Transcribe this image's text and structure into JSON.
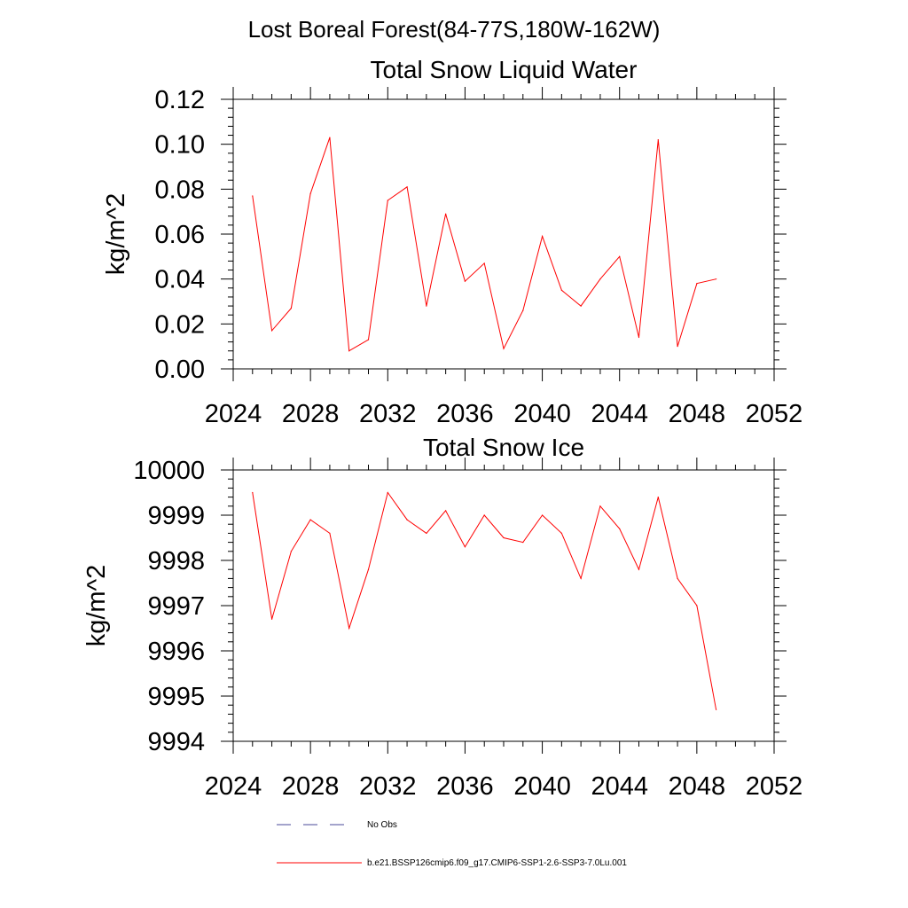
{
  "figure": {
    "title": "Lost Boreal Forest(84-77S,180W-162W)"
  },
  "chart_data": [
    {
      "type": "line",
      "title": "Total Snow Liquid Water",
      "xlabel": "",
      "ylabel": "kg/m^2",
      "xlim": [
        2024,
        2052
      ],
      "ylim": [
        0.0,
        0.12
      ],
      "grid": false,
      "x_ticks": [
        "2024",
        "2028",
        "2032",
        "2036",
        "2040",
        "2044",
        "2048",
        "2052"
      ],
      "y_ticks": [
        "0.00",
        "0.02",
        "0.04",
        "0.06",
        "0.08",
        "0.10",
        "0.12"
      ],
      "series": [
        {
          "name": "b.e21.BSSP126cmip6.f09_g17.CMIP6-SSP1-2.6-SSP3-7.0Lu.001",
          "color": "#ff0000",
          "x": [
            2025,
            2026,
            2027,
            2028,
            2029,
            2030,
            2031,
            2032,
            2033,
            2034,
            2035,
            2036,
            2037,
            2038,
            2039,
            2040,
            2041,
            2042,
            2043,
            2044,
            2045,
            2046,
            2047,
            2048,
            2049
          ],
          "values": [
            0.077,
            0.017,
            0.027,
            0.078,
            0.103,
            0.008,
            0.013,
            0.075,
            0.081,
            0.028,
            0.069,
            0.039,
            0.047,
            0.009,
            0.026,
            0.059,
            0.035,
            0.028,
            0.04,
            0.05,
            0.014,
            0.102,
            0.01,
            0.038,
            0.04
          ]
        }
      ]
    },
    {
      "type": "line",
      "title": "Total Snow Ice",
      "xlabel": "",
      "ylabel": "kg/m^2",
      "xlim": [
        2024,
        2052
      ],
      "ylim": [
        9994,
        10000
      ],
      "grid": false,
      "x_ticks": [
        "2024",
        "2028",
        "2032",
        "2036",
        "2040",
        "2044",
        "2048",
        "2052"
      ],
      "y_ticks": [
        "9994",
        "9995",
        "9996",
        "9997",
        "9998",
        "9999",
        "10000"
      ],
      "series": [
        {
          "name": "b.e21.BSSP126cmip6.f09_g17.CMIP6-SSP1-2.6-SSP3-7.0Lu.001",
          "color": "#ff0000",
          "x": [
            2025,
            2026,
            2027,
            2028,
            2029,
            2030,
            2031,
            2032,
            2033,
            2034,
            2035,
            2036,
            2037,
            2038,
            2039,
            2040,
            2041,
            2042,
            2043,
            2044,
            2045,
            2046,
            2047,
            2048,
            2049
          ],
          "values": [
            9999.5,
            9996.7,
            9998.2,
            9998.9,
            9998.6,
            9996.5,
            9997.8,
            9999.5,
            9998.9,
            9998.6,
            9999.1,
            9998.3,
            9999.0,
            9998.5,
            9998.4,
            9999.0,
            9998.6,
            9997.6,
            9999.2,
            9998.7,
            9997.8,
            9999.4,
            9997.6,
            9997.0,
            9994.7
          ]
        }
      ]
    }
  ],
  "legend": {
    "placement": "bottom",
    "items": [
      {
        "label": "No Obs",
        "color": "#4a4a9a",
        "style": "dashed"
      },
      {
        "label": "b.e21.BSSP126cmip6.f09_g17.CMIP6-SSP1-2.6-SSP3-7.0Lu.001",
        "color": "#ff0000",
        "style": "solid"
      }
    ]
  }
}
